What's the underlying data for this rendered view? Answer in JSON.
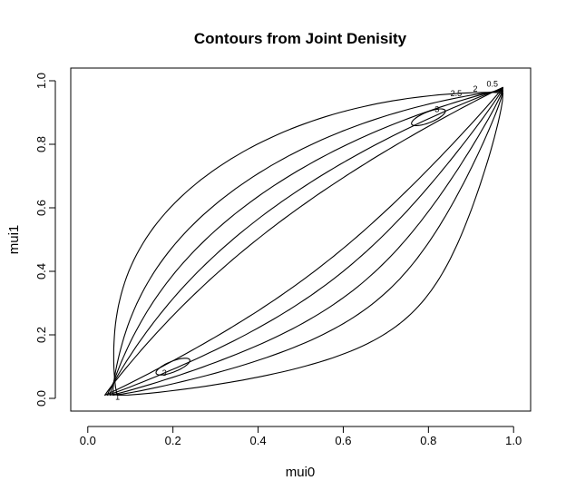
{
  "chart_data": {
    "type": "contour",
    "title": "Contours from Joint Denisity",
    "xlabel": "mui0",
    "ylabel": "mui1",
    "xlim": [
      -0.04,
      1.04
    ],
    "ylim": [
      -0.04,
      1.04
    ],
    "xticks": [
      0.0,
      0.2,
      0.4,
      0.6,
      0.8,
      1.0
    ],
    "xtick_labels": [
      "0.0",
      "0.2",
      "0.4",
      "0.6",
      "0.8",
      "1.0"
    ],
    "yticks": [
      0.0,
      0.2,
      0.4,
      0.6,
      0.8,
      1.0
    ],
    "ytick_labels": [
      "0.0",
      "0.2",
      "0.4",
      "0.6",
      "0.8",
      "1.0"
    ],
    "grid": false,
    "contours": [
      {
        "level": "0.5",
        "shape": "open-lens",
        "curvature": 0.78
      },
      {
        "level": "1",
        "shape": "open-lens",
        "curvature": 0.58
      },
      {
        "level": "1.5",
        "shape": "open-lens",
        "curvature": 0.44
      },
      {
        "level": "2",
        "shape": "open-lens",
        "curvature": 0.31
      },
      {
        "level": "2.5",
        "shape": "open-lens",
        "curvature": 0.2
      },
      {
        "level": "3",
        "shape": "closed",
        "center": [
          0.2,
          0.1
        ],
        "semi_axes": [
          0.045,
          0.016
        ],
        "angle_deg": 30
      },
      {
        "level": "3",
        "shape": "closed",
        "center": [
          0.8,
          0.885
        ],
        "semi_axes": [
          0.045,
          0.016
        ],
        "angle_deg": 30
      }
    ],
    "labels": [
      {
        "text": "0.5",
        "x": 0.95,
        "y": 0.99
      },
      {
        "text": "2",
        "x": 0.91,
        "y": 0.975
      },
      {
        "text": "2.5",
        "x": 0.865,
        "y": 0.96
      },
      {
        "text": "3",
        "x": 0.82,
        "y": 0.91
      },
      {
        "text": "3",
        "x": 0.18,
        "y": 0.08
      },
      {
        "text": "1",
        "x": 0.07,
        "y": 0.005
      }
    ]
  }
}
